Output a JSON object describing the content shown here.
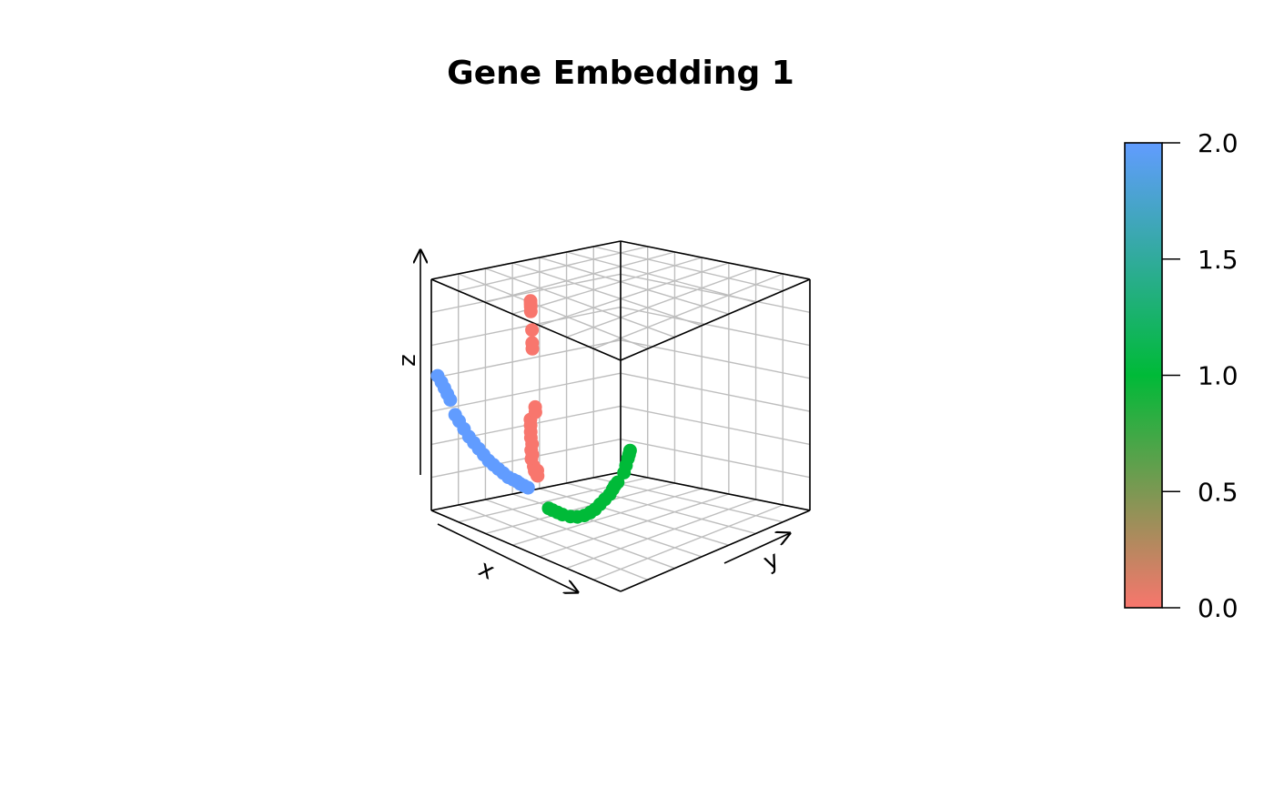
{
  "chart_data": {
    "type": "scatter",
    "title": "Gene Embedding 1",
    "xlabel": "x",
    "ylabel": "y",
    "zlabel": "z",
    "colorbar": {
      "ticks": [
        "0.0",
        "0.5",
        "1.0",
        "1.5",
        "2.0"
      ],
      "range": [
        0,
        2
      ],
      "colors": [
        "#f8766d",
        "#00ba38",
        "#619cff"
      ]
    },
    "grid": true,
    "series": [
      {
        "color_value": 0,
        "color": "#f8766d",
        "points": [
          [
            0.42,
            0.58,
            0.3
          ],
          [
            0.44,
            0.57,
            0.33
          ],
          [
            0.45,
            0.55,
            0.36
          ],
          [
            0.47,
            0.54,
            0.4
          ],
          [
            0.48,
            0.52,
            0.44
          ],
          [
            0.5,
            0.5,
            0.48
          ],
          [
            0.51,
            0.49,
            0.52
          ],
          [
            0.53,
            0.47,
            0.56
          ],
          [
            0.46,
            0.6,
            0.24
          ],
          [
            0.48,
            0.58,
            0.22
          ],
          [
            0.4,
            0.62,
            0.25
          ],
          [
            0.43,
            0.63,
            0.2
          ],
          [
            0.52,
            0.52,
            0.26
          ],
          [
            0.55,
            0.5,
            0.6
          ],
          [
            0.58,
            0.47,
            0.64
          ],
          [
            0.66,
            0.37,
            1.0
          ],
          [
            0.68,
            0.35,
            1.04
          ],
          [
            0.7,
            0.33,
            1.12
          ],
          [
            0.71,
            0.31,
            1.23
          ],
          [
            0.72,
            0.3,
            1.26
          ],
          [
            0.73,
            0.29,
            1.28
          ],
          [
            0.74,
            0.28,
            1.3
          ]
        ]
      },
      {
        "color_value": 1,
        "color": "#00ba38",
        "points": [
          [
            0.58,
            0.6,
            0.05
          ],
          [
            0.6,
            0.62,
            0.04
          ],
          [
            0.63,
            0.64,
            0.03
          ],
          [
            0.66,
            0.66,
            0.02
          ],
          [
            0.7,
            0.7,
            0.01
          ],
          [
            0.74,
            0.73,
            0.01
          ],
          [
            0.78,
            0.76,
            0.02
          ],
          [
            0.82,
            0.78,
            0.04
          ],
          [
            0.85,
            0.8,
            0.06
          ],
          [
            0.88,
            0.82,
            0.09
          ],
          [
            0.91,
            0.84,
            0.12
          ],
          [
            0.94,
            0.86,
            0.15
          ],
          [
            0.96,
            0.87,
            0.18
          ],
          [
            0.97,
            0.88,
            0.2
          ],
          [
            0.99,
            0.89,
            0.22
          ],
          [
            0.98,
            0.96,
            0.26
          ],
          [
            0.99,
            0.97,
            0.3
          ],
          [
            1.0,
            0.98,
            0.34
          ],
          [
            1.0,
            0.99,
            0.36
          ],
          [
            1.0,
            1.0,
            0.38
          ]
        ]
      },
      {
        "color_value": 2,
        "color": "#619cff",
        "points": [
          [
            0.0,
            0.06,
            0.75
          ],
          [
            0.03,
            0.07,
            0.72
          ],
          [
            0.05,
            0.08,
            0.69
          ],
          [
            0.07,
            0.09,
            0.66
          ],
          [
            0.09,
            0.1,
            0.63
          ],
          [
            0.12,
            0.12,
            0.55
          ],
          [
            0.15,
            0.13,
            0.52
          ],
          [
            0.18,
            0.15,
            0.48
          ],
          [
            0.21,
            0.17,
            0.44
          ],
          [
            0.24,
            0.19,
            0.41
          ],
          [
            0.27,
            0.21,
            0.38
          ],
          [
            0.3,
            0.23,
            0.35
          ],
          [
            0.33,
            0.25,
            0.32
          ],
          [
            0.36,
            0.27,
            0.3
          ],
          [
            0.39,
            0.29,
            0.28
          ],
          [
            0.42,
            0.31,
            0.26
          ],
          [
            0.45,
            0.33,
            0.24
          ],
          [
            0.48,
            0.35,
            0.23
          ],
          [
            0.5,
            0.37,
            0.22
          ],
          [
            0.52,
            0.38,
            0.21
          ],
          [
            0.54,
            0.4,
            0.2
          ],
          [
            0.56,
            0.42,
            0.19
          ]
        ]
      }
    ]
  }
}
